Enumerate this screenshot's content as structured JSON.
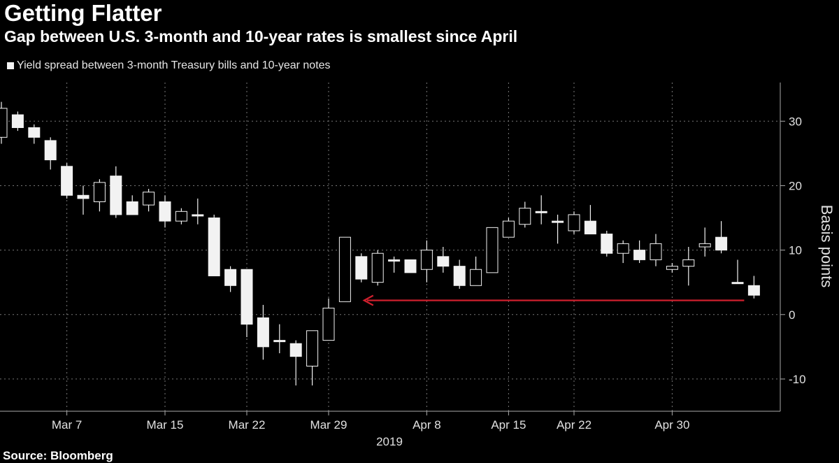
{
  "title": "Getting Flatter",
  "subtitle": "Gap between U.S. 3-month and 10-year rates is smallest since April",
  "legend_label": "Yield spread between 3-month Treasury bills and 10-year notes",
  "source": "Source: Bloomberg",
  "colors": {
    "background": "#000000",
    "candle": "#f2f2f2",
    "grid": "#777777",
    "arrow": "#d0202e"
  },
  "chart_data": {
    "type": "candlestick",
    "title": "Getting Flatter",
    "subtitle": "Gap between U.S. 3-month and 10-year rates is smallest since April",
    "ylabel": "Basis points",
    "y_axis_side": "right",
    "ylim": [
      -15,
      36
    ],
    "yticks": [
      30,
      20,
      10,
      0,
      -10
    ],
    "ytick_labels": [
      "30",
      "20",
      "10",
      "0",
      "-10"
    ],
    "x_tick_labels": [
      "Mar 7",
      "Mar 15",
      "Mar 22",
      "Mar 29",
      "Apr 8",
      "Apr 15",
      "Apr 22",
      "Apr 30"
    ],
    "x_tick_positions": [
      4,
      10,
      15,
      20,
      26,
      31,
      35,
      41
    ],
    "year_label": "2019",
    "grid": true,
    "legend_position": "top-left",
    "series": [
      {
        "name": "Yield spread between 3-month Treasury bills and 10-year notes",
        "candles": [
          {
            "o": 27.5,
            "c": 32,
            "h": 33,
            "l": 26.5
          },
          {
            "o": 31,
            "c": 29,
            "h": 31.5,
            "l": 28.5
          },
          {
            "o": 29,
            "c": 27.5,
            "h": 29.5,
            "l": 26.5
          },
          {
            "o": 27,
            "c": 24,
            "h": 27.5,
            "l": 22.5
          },
          {
            "o": 23,
            "c": 18.5,
            "h": 23.5,
            "l": 18
          },
          {
            "o": 18.5,
            "c": 18,
            "h": 20,
            "l": 15.5
          },
          {
            "o": 17.5,
            "c": 20.5,
            "h": 21,
            "l": 16
          },
          {
            "o": 21.5,
            "c": 15.5,
            "h": 23,
            "l": 15
          },
          {
            "o": 17.5,
            "c": 15.5,
            "h": 18.5,
            "l": 15.5
          },
          {
            "o": 17,
            "c": 19,
            "h": 19.5,
            "l": 16
          },
          {
            "o": 17.5,
            "c": 14.5,
            "h": 18.5,
            "l": 13.5
          },
          {
            "o": 14.5,
            "c": 16,
            "h": 16.5,
            "l": 14
          },
          {
            "o": 15.5,
            "c": 15.5,
            "h": 18,
            "l": 14
          },
          {
            "o": 15,
            "c": 6,
            "h": 15.5,
            "l": 6
          },
          {
            "o": 7,
            "c": 4.5,
            "h": 7.5,
            "l": 3.5
          },
          {
            "o": 7,
            "c": -1.5,
            "h": 7,
            "l": -3.5
          },
          {
            "o": -0.5,
            "c": -5,
            "h": 1.5,
            "l": -7
          },
          {
            "o": -4,
            "c": -4,
            "h": -1.5,
            "l": -6
          },
          {
            "o": -4.5,
            "c": -6.5,
            "h": -4,
            "l": -11
          },
          {
            "o": -8,
            "c": -2.5,
            "h": -2.5,
            "l": -11
          },
          {
            "o": -4,
            "c": 1,
            "h": 2.5,
            "l": -4
          },
          {
            "o": 2,
            "c": 12,
            "h": 12,
            "l": 2
          },
          {
            "o": 9,
            "c": 5.5,
            "h": 9.5,
            "l": 5
          },
          {
            "o": 5,
            "c": 9.5,
            "h": 10,
            "l": 4.5
          },
          {
            "o": 8.5,
            "c": 8.5,
            "h": 9,
            "l": 6.5
          },
          {
            "o": 8.5,
            "c": 6.5,
            "h": 8.5,
            "l": 6.5
          },
          {
            "o": 7,
            "c": 10,
            "h": 11.5,
            "l": 5
          },
          {
            "o": 9,
            "c": 7.5,
            "h": 10.5,
            "l": 6.5
          },
          {
            "o": 7.5,
            "c": 4.5,
            "h": 8.5,
            "l": 4
          },
          {
            "o": 4.5,
            "c": 7,
            "h": 9,
            "l": 4.5
          },
          {
            "o": 6.5,
            "c": 13.5,
            "h": 13.5,
            "l": 6.5
          },
          {
            "o": 12,
            "c": 14.5,
            "h": 15,
            "l": 12
          },
          {
            "o": 14,
            "c": 16.5,
            "h": 17.5,
            "l": 13.5
          },
          {
            "o": 16,
            "c": 16,
            "h": 18.5,
            "l": 14
          },
          {
            "o": 14.5,
            "c": 14.5,
            "h": 15.5,
            "l": 11
          },
          {
            "o": 13,
            "c": 15.5,
            "h": 16,
            "l": 12.5
          },
          {
            "o": 14.5,
            "c": 12.5,
            "h": 17,
            "l": 12.5
          },
          {
            "o": 12.5,
            "c": 9.5,
            "h": 13,
            "l": 9
          },
          {
            "o": 9.5,
            "c": 11,
            "h": 11.5,
            "l": 8
          },
          {
            "o": 10,
            "c": 8.5,
            "h": 11.5,
            "l": 8
          },
          {
            "o": 8.5,
            "c": 11,
            "h": 12.5,
            "l": 7.5
          },
          {
            "o": 7,
            "c": 7.5,
            "h": 8,
            "l": 6.5
          },
          {
            "o": 7.5,
            "c": 8.5,
            "h": 10.5,
            "l": 4.5
          },
          {
            "o": 10.5,
            "c": 11,
            "h": 13.5,
            "l": 9
          },
          {
            "o": 12,
            "c": 10,
            "h": 14.5,
            "l": 9.5
          },
          {
            "o": 5,
            "c": 5,
            "h": 8.5,
            "l": 5
          },
          {
            "o": 4.5,
            "c": 3,
            "h": 6,
            "l": 2.5
          }
        ]
      }
    ],
    "annotations": [
      {
        "type": "arrow",
        "from_index": 46,
        "to_index": 22,
        "value": 2.2,
        "direction": "left"
      }
    ]
  }
}
